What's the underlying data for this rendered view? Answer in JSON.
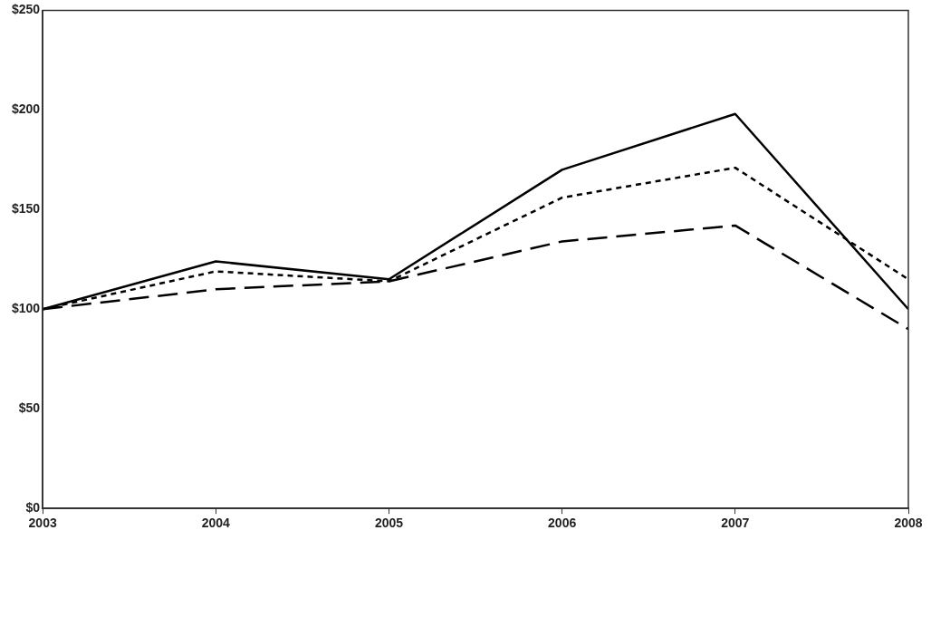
{
  "chart_data": {
    "type": "line",
    "x": [
      2003,
      2004,
      2005,
      2006,
      2007,
      2008
    ],
    "xlim": [
      2003,
      2008
    ],
    "xticks": [
      2003,
      2004,
      2005,
      2006,
      2007,
      2008
    ],
    "ylim": [
      0,
      250
    ],
    "yticks": [
      {
        "value": 0,
        "label": "$0"
      },
      {
        "value": 50,
        "label": "$50"
      },
      {
        "value": 100,
        "label": "$100"
      },
      {
        "value": 150,
        "label": "$150"
      },
      {
        "value": 200,
        "label": "$200"
      },
      {
        "value": 250,
        "label": "$250"
      }
    ],
    "grid": false,
    "legend": false,
    "marker": "none",
    "series": [
      {
        "color": "#000000",
        "line_style": "solid",
        "values": [
          100,
          124,
          115,
          170,
          198,
          100
        ]
      },
      {
        "color": "#000000",
        "line_style": "dashed",
        "values": [
          100,
          110,
          114,
          134,
          142,
          90
        ]
      },
      {
        "color": "#000000",
        "line_style": "dotted",
        "values": [
          100,
          119,
          114,
          156,
          171,
          115
        ]
      }
    ]
  }
}
